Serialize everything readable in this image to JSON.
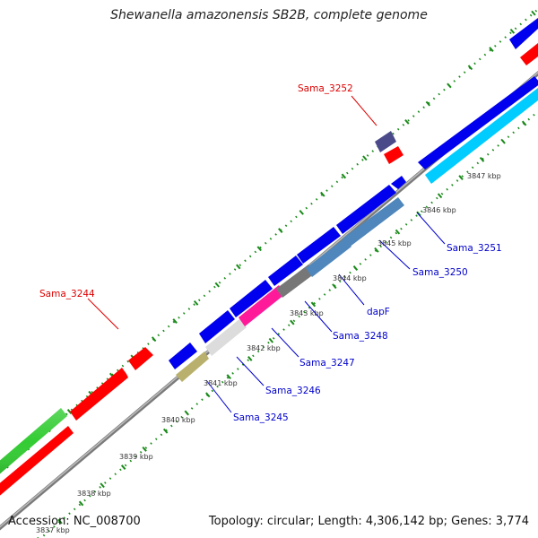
{
  "title": "Shewanella amazonensis SB2B, complete genome",
  "footer": {
    "accession": "Accession: NC_008700",
    "summary": "Topology: circular; Length: 4,306,142 bp; Genes: 3,774"
  },
  "ticks": [
    "3837 kbp",
    "3838 kbp",
    "3839 kbp",
    "3840 kbp",
    "3841 kbp",
    "3842 kbp",
    "3843 kbp",
    "3844 kbp",
    "3845 kbp",
    "3846 kbp",
    "3847 kbp"
  ],
  "labels": {
    "sama_3244": "Sama_3244",
    "sama_3252": "Sama_3252",
    "sama_3245": "Sama_3245",
    "sama_3246": "Sama_3246",
    "sama_3247": "Sama_3247",
    "sama_3248": "Sama_3248",
    "dapf": "dapF",
    "sama_3250": "Sama_3250",
    "sama_3251": "Sama_3251"
  },
  "colors": {
    "red_label": "#dd0000",
    "blue_label": "#0000cc",
    "gene_blue": "#0000ee",
    "gene_red": "#ff0000",
    "gene_green": "#33cc33",
    "gene_cyan": "#00ccff",
    "gene_steel": "#4f86bb",
    "gene_gray": "#777777",
    "gene_pink": "#ff1a9a",
    "gene_lightgray": "#dcdcdc",
    "gene_khaki": "#b8b06c",
    "gene_navy": "#4a4a8a",
    "backbone": "#888888",
    "tick_mark": "#1a8a1a"
  }
}
